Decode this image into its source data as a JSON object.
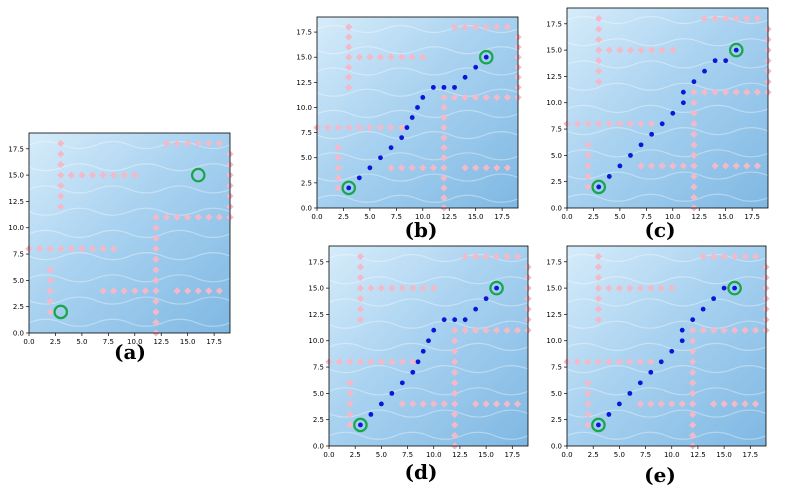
{
  "colors": {
    "water_dark": "#7fb8e3",
    "water_mid": "#a9d2f0",
    "water_light": "#d6ecfa",
    "obstacle": "#f4b9c9",
    "path": "#0a16d8",
    "ring": "#19a54a"
  },
  "chart_data": [
    {
      "id": "a",
      "caption": "(a)",
      "type": "scatter",
      "xlim": [
        0,
        19
      ],
      "ylim": [
        0,
        19
      ],
      "xticks": [
        "0.0",
        "2.5",
        "5.0",
        "7.5",
        "10.0",
        "12.5",
        "15.0",
        "17.5"
      ],
      "yticks": [
        "0.0",
        "2.5",
        "5.0",
        "7.5",
        "10.0",
        "12.5",
        "15.0",
        "17.5"
      ],
      "start": [
        3,
        2
      ],
      "goal": [
        16,
        15
      ],
      "path": []
    },
    {
      "id": "b",
      "caption": "(b)",
      "type": "scatter",
      "xlim": [
        0,
        19
      ],
      "ylim": [
        0,
        19
      ],
      "xticks": [
        "0.0",
        "2.5",
        "5.0",
        "7.5",
        "10.0",
        "12.5",
        "15.0",
        "17.5"
      ],
      "yticks": [
        "0.0",
        "2.5",
        "5.0",
        "7.5",
        "10.0",
        "12.5",
        "15.0",
        "17.5"
      ],
      "start": [
        3,
        2
      ],
      "goal": [
        16,
        15
      ],
      "path": [
        [
          3,
          2
        ],
        [
          4,
          3
        ],
        [
          5,
          4
        ],
        [
          6,
          5
        ],
        [
          7,
          6
        ],
        [
          8,
          7
        ],
        [
          8.5,
          8
        ],
        [
          9,
          9
        ],
        [
          9.5,
          10
        ],
        [
          10,
          11
        ],
        [
          11,
          12
        ],
        [
          12,
          12
        ],
        [
          13,
          12
        ],
        [
          14,
          13
        ],
        [
          15,
          14
        ],
        [
          16,
          15
        ]
      ]
    },
    {
      "id": "c",
      "caption": "(c)",
      "type": "scatter",
      "xlim": [
        0,
        19
      ],
      "ylim": [
        0,
        19
      ],
      "xticks": [
        "0.0",
        "2.5",
        "5.0",
        "7.5",
        "10.0",
        "12.5",
        "15.0",
        "17.5"
      ],
      "yticks": [
        "0.0",
        "2.5",
        "5.0",
        "7.5",
        "10.0",
        "12.5",
        "15.0",
        "17.5"
      ],
      "start": [
        3,
        2
      ],
      "goal": [
        16,
        15
      ],
      "path": [
        [
          3,
          2
        ],
        [
          4,
          3
        ],
        [
          5,
          4
        ],
        [
          6,
          5
        ],
        [
          7,
          6
        ],
        [
          8,
          7
        ],
        [
          9,
          8
        ],
        [
          10,
          9
        ],
        [
          11,
          10
        ],
        [
          11,
          11
        ],
        [
          12,
          12
        ],
        [
          13,
          13
        ],
        [
          14,
          14
        ],
        [
          15,
          14
        ],
        [
          16,
          15
        ]
      ]
    },
    {
      "id": "d",
      "caption": "(d)",
      "type": "scatter",
      "xlim": [
        0,
        19
      ],
      "ylim": [
        0,
        19
      ],
      "xticks": [
        "0.0",
        "2.5",
        "5.0",
        "7.5",
        "10.0",
        "12.5",
        "15.0",
        "17.5"
      ],
      "yticks": [
        "0.0",
        "2.5",
        "5.0",
        "7.5",
        "10.0",
        "12.5",
        "15.0",
        "17.5"
      ],
      "start": [
        3,
        2
      ],
      "goal": [
        16,
        15
      ],
      "path": [
        [
          3,
          2
        ],
        [
          4,
          3
        ],
        [
          5,
          4
        ],
        [
          6,
          5
        ],
        [
          7,
          6
        ],
        [
          8,
          7
        ],
        [
          8.5,
          8
        ],
        [
          9,
          9
        ],
        [
          9.5,
          10
        ],
        [
          10,
          11
        ],
        [
          11,
          12
        ],
        [
          12,
          12
        ],
        [
          13,
          12
        ],
        [
          14,
          13
        ],
        [
          15,
          14
        ],
        [
          16,
          15
        ]
      ]
    },
    {
      "id": "e",
      "caption": "(e)",
      "type": "scatter",
      "xlim": [
        0,
        19
      ],
      "ylim": [
        0,
        19
      ],
      "xticks": [
        "0.0",
        "2.5",
        "5.0",
        "7.5",
        "10.0",
        "12.5",
        "15.0",
        "17.5"
      ],
      "yticks": [
        "0.0",
        "2.5",
        "5.0",
        "7.5",
        "10.0",
        "12.5",
        "15.0",
        "17.5"
      ],
      "start": [
        3,
        2
      ],
      "goal": [
        16,
        15
      ],
      "path": [
        [
          3,
          2
        ],
        [
          4,
          3
        ],
        [
          5,
          4
        ],
        [
          6,
          5
        ],
        [
          7,
          6
        ],
        [
          8,
          7
        ],
        [
          9,
          8
        ],
        [
          10,
          9
        ],
        [
          11,
          10
        ],
        [
          11,
          11
        ],
        [
          12,
          12
        ],
        [
          13,
          13
        ],
        [
          14,
          14
        ],
        [
          15,
          15
        ],
        [
          16,
          15
        ]
      ]
    }
  ],
  "obstacles": [
    [
      3,
      12
    ],
    [
      3,
      13
    ],
    [
      3,
      14
    ],
    [
      3,
      15
    ],
    [
      3,
      16
    ],
    [
      3,
      17
    ],
    [
      3,
      18
    ],
    [
      4,
      15
    ],
    [
      5,
      15
    ],
    [
      6,
      15
    ],
    [
      7,
      15
    ],
    [
      8,
      15
    ],
    [
      9,
      15
    ],
    [
      10,
      15
    ],
    [
      13,
      18
    ],
    [
      14,
      18
    ],
    [
      15,
      18
    ],
    [
      16,
      18
    ],
    [
      17,
      18
    ],
    [
      18,
      18
    ],
    [
      19,
      11
    ],
    [
      19,
      12
    ],
    [
      19,
      13
    ],
    [
      19,
      14
    ],
    [
      19,
      15
    ],
    [
      19,
      16
    ],
    [
      19,
      17
    ],
    [
      13,
      11
    ],
    [
      14,
      11
    ],
    [
      15,
      11
    ],
    [
      16,
      11
    ],
    [
      17,
      11
    ],
    [
      18,
      11
    ],
    [
      12,
      0
    ],
    [
      12,
      1
    ],
    [
      12,
      2
    ],
    [
      12,
      3
    ],
    [
      12,
      4
    ],
    [
      12,
      5
    ],
    [
      12,
      6
    ],
    [
      12,
      7
    ],
    [
      12,
      8
    ],
    [
      12,
      9
    ],
    [
      12,
      10
    ],
    [
      12,
      11
    ],
    [
      0,
      8
    ],
    [
      1,
      8
    ],
    [
      2,
      8
    ],
    [
      3,
      8
    ],
    [
      4,
      8
    ],
    [
      5,
      8
    ],
    [
      6,
      8
    ],
    [
      7,
      8
    ],
    [
      8,
      8
    ],
    [
      2,
      2
    ],
    [
      2,
      3
    ],
    [
      2,
      4
    ],
    [
      2,
      5
    ],
    [
      2,
      6
    ],
    [
      7,
      4
    ],
    [
      8,
      4
    ],
    [
      9,
      4
    ],
    [
      10,
      4
    ],
    [
      11,
      4
    ],
    [
      14,
      4
    ],
    [
      15,
      4
    ],
    [
      16,
      4
    ],
    [
      17,
      4
    ],
    [
      18,
      4
    ]
  ]
}
